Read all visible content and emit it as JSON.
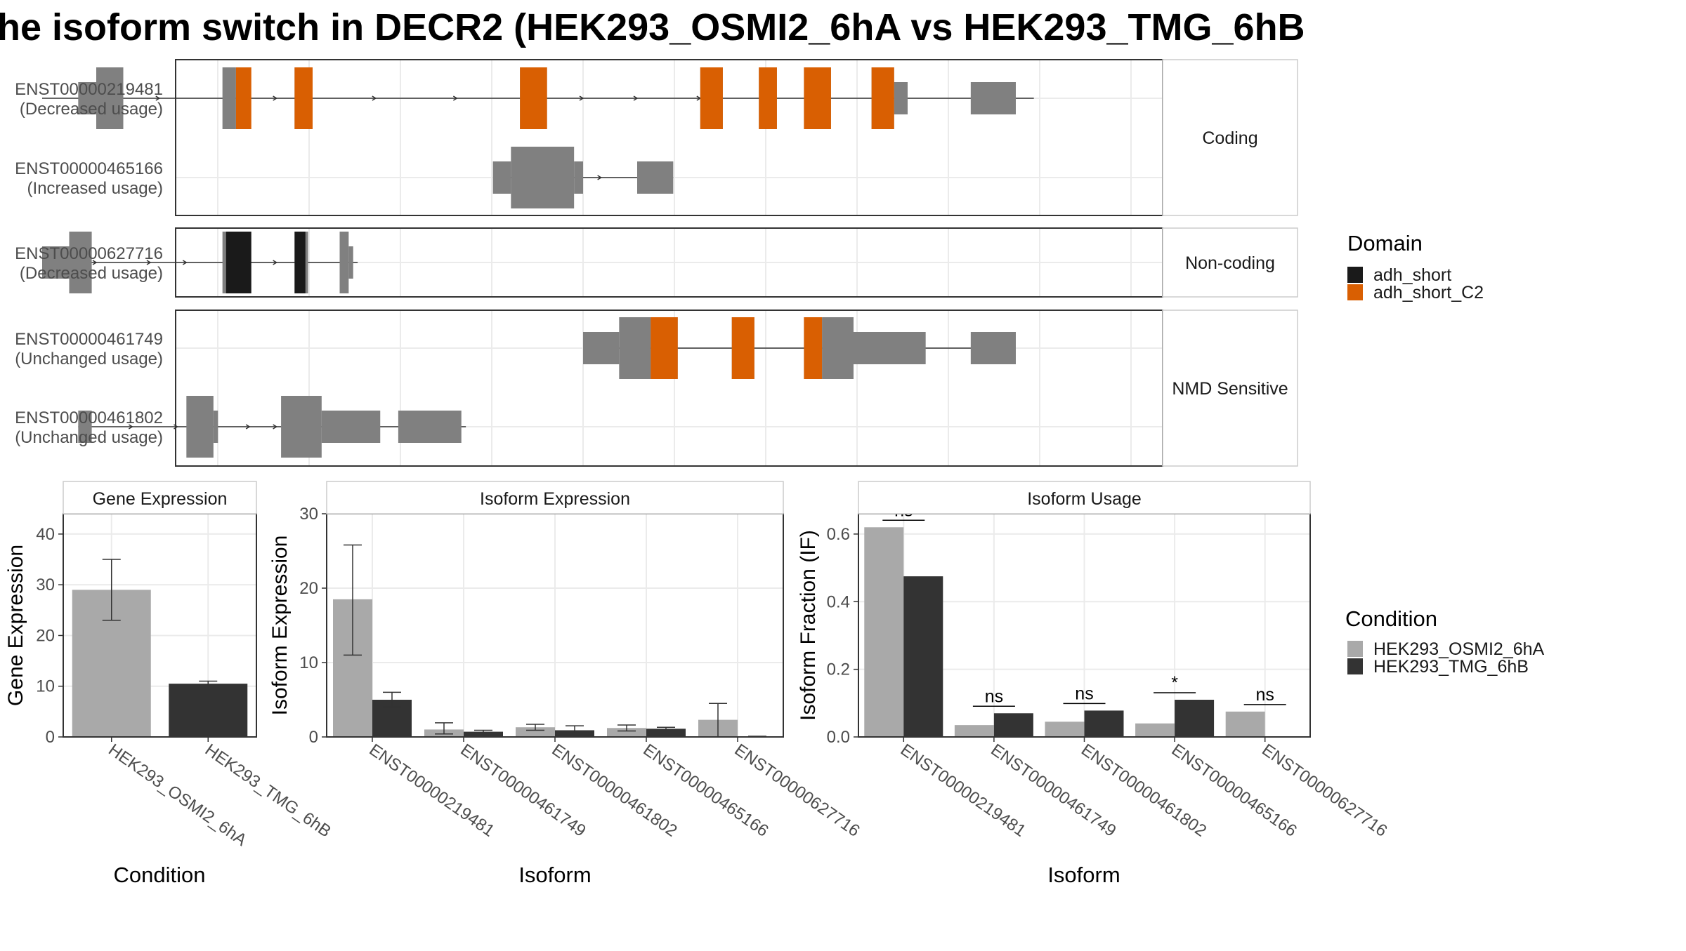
{
  "title": "he isoform switch in DECR2 (HEK293_OSMI2_6hA vs HEK293_TMG_6hB",
  "colors": {
    "exon": "#808080",
    "adh_short": "#1a1a1a",
    "adh_short_C2": "#d95f02",
    "cond_A": "#a9a9a9",
    "cond_B": "#333333"
  },
  "structure": {
    "coord_range": [
      0,
      1200
    ],
    "groups": [
      {
        "strip": "Coding",
        "transcripts": [
          {
            "id": "ENST00000219481",
            "usage": "(Decreased usage)",
            "introns": [
              [
                0,
                1100
              ]
            ],
            "exons": [
              [
                40,
                60,
                "utr"
              ],
              [
                60,
                90,
                "cds"
              ],
              [
                200,
                215,
                "cds"
              ],
              [
                280,
                300,
                "cds"
              ],
              [
                530,
                560,
                "cds"
              ],
              [
                730,
                755,
                "cds"
              ],
              [
                795,
                815,
                "cds"
              ],
              [
                845,
                875,
                "cds"
              ],
              [
                920,
                945,
                "cds"
              ],
              [
                945,
                960,
                "utr"
              ],
              [
                1030,
                1080,
                "utr"
              ]
            ],
            "domains": [
              [
                215,
                232,
                "adh_short_C2"
              ],
              [
                280,
                300,
                "adh_short_C2"
              ],
              [
                530,
                560,
                "adh_short_C2"
              ],
              [
                730,
                755,
                "adh_short_C2"
              ],
              [
                795,
                815,
                "adh_short_C2"
              ],
              [
                845,
                875,
                "adh_short_C2"
              ],
              [
                920,
                945,
                "adh_short_C2"
              ]
            ],
            "arrows": [
              60,
              130,
              260,
              370,
              460,
              600,
              660,
              730
            ]
          },
          {
            "id": "ENST00000465166",
            "usage": "(Increased usage)",
            "introns": [
              [
                515,
                700
              ]
            ],
            "exons": [
              [
                500,
                520,
                "utr"
              ],
              [
                520,
                590,
                "cds"
              ],
              [
                590,
                600,
                "utr"
              ],
              [
                660,
                700,
                "utr"
              ]
            ],
            "domains": [],
            "arrows": [
              560,
              620,
              690
            ]
          }
        ]
      },
      {
        "strip": "Non-coding",
        "transcripts": [
          {
            "id": "ENST00000627716",
            "usage": "(Decreased usage)",
            "introns": [
              [
                0,
                350
              ]
            ],
            "exons": [
              [
                0,
                30,
                "utr"
              ],
              [
                30,
                55,
                "cds"
              ],
              [
                200,
                215,
                "cds"
              ],
              [
                280,
                295,
                "cds"
              ],
              [
                330,
                340,
                "cds"
              ],
              [
                340,
                345,
                "utr"
              ]
            ],
            "domains": [
              [
                204,
                232,
                "adh_short"
              ],
              [
                280,
                292,
                "adh_short"
              ]
            ],
            "arrows": [
              60,
              120,
              160,
              260
            ]
          }
        ]
      },
      {
        "strip": "NMD Sensitive",
        "transcripts": [
          {
            "id": "ENST00000461749",
            "usage": "(Unchanged usage)",
            "introns": [
              [
                600,
                1080
              ]
            ],
            "exons": [
              [
                600,
                640,
                "utr"
              ],
              [
                640,
                675,
                "cds"
              ],
              [
                675,
                705,
                "cds"
              ],
              [
                765,
                790,
                "cds"
              ],
              [
                845,
                865,
                "cds"
              ],
              [
                865,
                900,
                "cds"
              ],
              [
                900,
                980,
                "utr"
              ],
              [
                1030,
                1080,
                "utr"
              ]
            ],
            "domains": [
              [
                675,
                705,
                "adh_short_C2"
              ],
              [
                765,
                790,
                "adh_short_C2"
              ],
              [
                845,
                865,
                "adh_short_C2"
              ]
            ],
            "arrows": []
          },
          {
            "id": "ENST00000461802",
            "usage": "(Unchanged usage)",
            "introns": [
              [
                40,
                470
              ]
            ],
            "exons": [
              [
                40,
                55,
                "utr"
              ],
              [
                160,
                190,
                "cds"
              ],
              [
                190,
                195,
                "utr"
              ],
              [
                265,
                310,
                "cds"
              ],
              [
                310,
                375,
                "utr"
              ],
              [
                395,
                465,
                "utr"
              ]
            ],
            "domains": [],
            "arrows": [
              100,
              150,
              230,
              260
            ]
          }
        ]
      }
    ]
  },
  "legend_domain": {
    "title": "Domain",
    "items": [
      {
        "label": "adh_short",
        "color": "#1a1a1a"
      },
      {
        "label": "adh_short_C2",
        "color": "#d95f02"
      }
    ]
  },
  "legend_condition": {
    "title": "Condition",
    "items": [
      {
        "label": "HEK293_OSMI2_6hA",
        "color": "#a9a9a9"
      },
      {
        "label": "HEK293_TMG_6hB",
        "color": "#333333"
      }
    ]
  },
  "chart_data": [
    {
      "type": "bar",
      "title": "Gene Expression",
      "xlabel": "Condition",
      "ylabel": "Gene Expression",
      "ylim": [
        0,
        44
      ],
      "yticks": [
        0,
        10,
        20,
        30,
        40
      ],
      "categories": [
        "HEK293_OSMI2_6hA",
        "HEK293_TMG_6hB"
      ],
      "values": [
        29,
        10.5
      ],
      "error_low": [
        23,
        10
      ],
      "error_high": [
        35,
        11
      ]
    },
    {
      "type": "bar",
      "title": "Isoform Expression",
      "xlabel": "Isoform",
      "ylabel": "Isoform Expression",
      "ylim": [
        0,
        30
      ],
      "yticks": [
        0,
        10,
        20,
        30
      ],
      "categories": [
        "ENST00000219481",
        "ENST00000461749",
        "ENST00000461802",
        "ENST00000465166",
        "ENST00000627716"
      ],
      "series": [
        {
          "name": "HEK293_OSMI2_6hA",
          "values": [
            18.5,
            1,
            1.3,
            1.2,
            2.3
          ],
          "error_low": [
            11,
            0.4,
            0.9,
            0.8,
            0
          ],
          "error_high": [
            25.8,
            1.9,
            1.7,
            1.6,
            4.5
          ]
        },
        {
          "name": "HEK293_TMG_6hB",
          "values": [
            5,
            0.7,
            0.9,
            1.1,
            0.05
          ],
          "error_low": [
            4,
            0.5,
            0.4,
            0.9,
            0
          ],
          "error_high": [
            6,
            0.9,
            1.5,
            1.3,
            0.1
          ]
        }
      ]
    },
    {
      "type": "bar",
      "title": "Isoform Usage",
      "xlabel": "Isoform",
      "ylabel": "Isoform Fraction (IF)",
      "ylim": [
        0,
        0.66
      ],
      "yticks": [
        0.0,
        0.2,
        0.4,
        0.6
      ],
      "ytick_labels": [
        "0.0",
        "0.2",
        "0.4",
        "0.6"
      ],
      "categories": [
        "ENST00000219481",
        "ENST00000461749",
        "ENST00000461802",
        "ENST00000465166",
        "ENST00000627716"
      ],
      "series": [
        {
          "name": "HEK293_OSMI2_6hA",
          "values": [
            0.62,
            0.035,
            0.045,
            0.04,
            0.075
          ]
        },
        {
          "name": "HEK293_TMG_6hB",
          "values": [
            0.475,
            0.07,
            0.078,
            0.11,
            0
          ]
        }
      ],
      "significance": [
        "ns",
        "ns",
        "ns",
        "*",
        "ns"
      ]
    }
  ]
}
